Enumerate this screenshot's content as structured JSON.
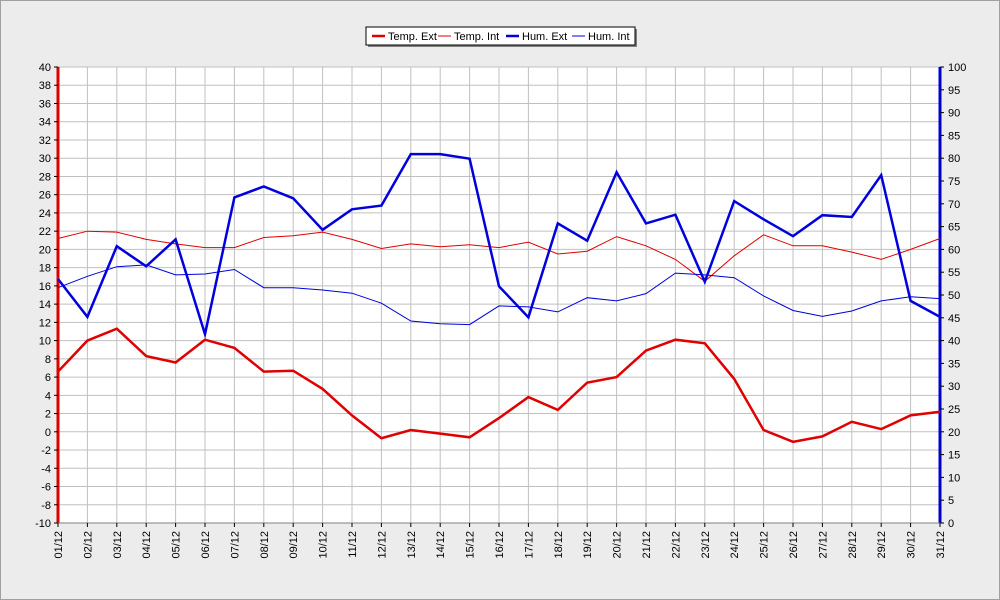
{
  "chart_data": {
    "type": "line",
    "categories": [
      "01/12",
      "02/12",
      "03/12",
      "04/12",
      "05/12",
      "06/12",
      "07/12",
      "08/12",
      "09/12",
      "10/12",
      "11/12",
      "12/12",
      "13/12",
      "14/12",
      "15/12",
      "16/12",
      "17/12",
      "18/12",
      "19/12",
      "20/12",
      "21/12",
      "22/12",
      "23/12",
      "24/12",
      "25/12",
      "26/12",
      "27/12",
      "28/12",
      "29/12",
      "30/12",
      "31/12"
    ],
    "y_left": {
      "ylim": [
        -10,
        40
      ],
      "ticks": [
        40,
        38,
        36,
        34,
        32,
        30,
        28,
        26,
        24,
        22,
        20,
        18,
        16,
        14,
        12,
        10,
        8,
        6,
        4,
        2,
        0,
        -2,
        -4,
        -6,
        -8,
        -10
      ],
      "color": "#dd0000"
    },
    "y_right": {
      "ylim": [
        0,
        100
      ],
      "ticks": [
        100,
        95,
        90,
        85,
        80,
        75,
        70,
        65,
        60,
        55,
        50,
        45,
        40,
        35,
        30,
        25,
        20,
        15,
        10,
        5,
        0
      ],
      "color": "#0000cc"
    },
    "grid": true,
    "legend_position": "top-center",
    "series": [
      {
        "name": "Temp. Ext",
        "axis": "left",
        "color": "#e00000",
        "width": "thick",
        "values": [
          6.6,
          10.0,
          11.3,
          8.3,
          7.6,
          10.1,
          9.2,
          6.6,
          6.7,
          4.7,
          1.8,
          -0.7,
          0.2,
          -0.2,
          -0.6,
          1.5,
          3.8,
          2.4,
          5.4,
          6.0,
          8.9,
          10.1,
          9.7,
          5.8,
          0.2,
          -1.1,
          -0.5,
          1.1,
          0.3,
          1.8,
          2.2
        ]
      },
      {
        "name": "Temp. Int",
        "axis": "left",
        "color": "#e00000",
        "width": "thin",
        "values": [
          21.2,
          22.0,
          21.9,
          21.1,
          20.6,
          20.2,
          20.2,
          21.3,
          21.5,
          21.9,
          21.1,
          20.1,
          20.6,
          20.3,
          20.5,
          20.2,
          20.8,
          19.5,
          19.8,
          21.4,
          20.4,
          18.9,
          16.5,
          19.3,
          21.6,
          20.4,
          20.4,
          19.7,
          18.9,
          20.0,
          21.2
        ]
      },
      {
        "name": "Hum. Ext",
        "axis": "right",
        "color": "#0000dd",
        "width": "thick",
        "values": [
          53.5,
          45.2,
          60.7,
          56.3,
          62.2,
          41.4,
          71.4,
          73.8,
          71.2,
          64.3,
          68.8,
          69.6,
          80.9,
          80.9,
          79.9,
          51.9,
          45.1,
          65.7,
          61.9,
          76.9,
          65.7,
          67.6,
          52.9,
          70.6,
          66.6,
          62.9,
          67.5,
          67.1,
          76.3,
          48.7,
          45.2
        ]
      },
      {
        "name": "Hum. Int",
        "axis": "right",
        "color": "#0000dd",
        "width": "thin",
        "values": [
          51.6,
          54.1,
          56.2,
          56.6,
          54.4,
          54.6,
          55.6,
          51.6,
          51.6,
          51.1,
          50.4,
          48.2,
          44.3,
          43.7,
          43.5,
          47.6,
          47.4,
          46.3,
          49.4,
          48.7,
          50.3,
          54.8,
          54.4,
          53.8,
          49.8,
          46.6,
          45.3,
          46.5,
          48.7,
          49.6,
          49.2
        ]
      }
    ]
  }
}
